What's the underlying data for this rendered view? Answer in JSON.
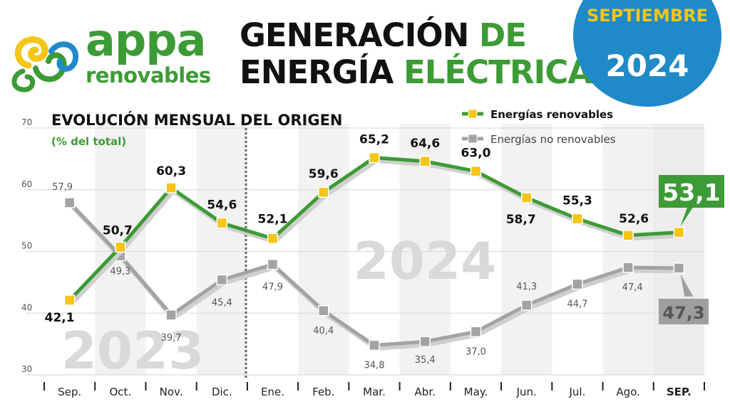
{
  "brand": {
    "logo_word": "appa",
    "logo_subword": "renovables",
    "colors": {
      "green": "#3d9b35",
      "yellow": "#f5c518",
      "blue": "#1f8ac7",
      "gray": "#a3a3a3"
    }
  },
  "title": {
    "line1_a": "GENERACIÓN",
    "line1_b": "DE",
    "line2_a": "ENERGÍA",
    "line2_b": "ELÉCTRICA"
  },
  "badge": {
    "month": "SEPTIEMBRE",
    "year": "2024"
  },
  "chart_data": {
    "type": "line",
    "title": "EVOLUCIÓN MENSUAL DEL ORIGEN",
    "subtitle": "(% del total)",
    "categories": [
      "Sep.",
      "Oct.",
      "Nov.",
      "Dic.",
      "Ene.",
      "Feb.",
      "Mar.",
      "Abr.",
      "May.",
      "Jun.",
      "Jul.",
      "Ago.",
      "SEP."
    ],
    "series": [
      {
        "name": "Energías renovables",
        "values": [
          42.1,
          50.7,
          60.3,
          54.6,
          52.1,
          59.6,
          65.2,
          64.6,
          63.0,
          58.7,
          55.3,
          52.6,
          53.1
        ],
        "labels": [
          "42,1",
          "50,7",
          "60,3",
          "54,6",
          "52,1",
          "59,6",
          "65,2",
          "64,6",
          "63,0",
          "58,7",
          "55,3",
          "52,6",
          "53,1"
        ]
      },
      {
        "name": "Energías no renovables",
        "values": [
          57.9,
          49.3,
          39.7,
          45.4,
          47.9,
          40.4,
          34.8,
          35.4,
          37.0,
          41.3,
          44.7,
          47.4,
          47.3
        ],
        "labels": [
          "57,9",
          "49,3",
          "39,7",
          "45,4",
          "47,9",
          "40,4",
          "34,8",
          "35,4",
          "37,0",
          "41,3",
          "44,7",
          "47,4",
          "47,3"
        ]
      }
    ],
    "ylim": [
      30,
      70
    ],
    "yticks": [
      "30",
      "40",
      "50",
      "60",
      "70"
    ],
    "background_years": [
      "2023",
      "2024"
    ],
    "grid": true,
    "legend_position": "top-right"
  }
}
